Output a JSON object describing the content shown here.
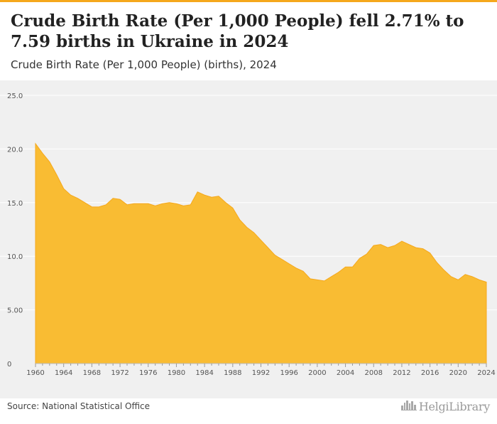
{
  "header": {
    "title": "Crude Birth Rate (Per 1,000 People) fell 2.71% to 7.59 births in Ukraine in 2024",
    "subtitle": "Crude Birth Rate (Per 1,000 People) (births), 2024"
  },
  "footer": {
    "source": "Source: National Statistical Office",
    "logo_text": "HelgiLibrary"
  },
  "colors": {
    "area_fill": "#f9bc33",
    "area_stroke": "#f5a81c",
    "plot_background": "#f0f0f0",
    "grid": "#ffffff",
    "accent_bar": "#f5a81c"
  },
  "icons": {
    "logo": "city-skyline-icon"
  },
  "chart_data": {
    "type": "area",
    "title": "",
    "xlabel": "",
    "ylabel": "",
    "xlim": [
      1960,
      2024
    ],
    "ylim": [
      0,
      25
    ],
    "grid": true,
    "legend": "none",
    "y_ticks": [
      0,
      5,
      10,
      15,
      20,
      25
    ],
    "y_tick_labels": [
      "0",
      "5.00",
      "10.0",
      "15.0",
      "20.0",
      "25.0"
    ],
    "x_ticks": [
      1960,
      1964,
      1968,
      1972,
      1976,
      1980,
      1984,
      1988,
      1992,
      1996,
      2000,
      2004,
      2008,
      2012,
      2016,
      2020,
      2024
    ],
    "x_tick_labels": [
      "1960",
      "1964",
      "1968",
      "1972",
      "1976",
      "1980",
      "1984",
      "1988",
      "1992",
      "1996",
      "2000",
      "2004",
      "2008",
      "2012",
      "2016",
      "2020",
      "2024"
    ],
    "series": [
      {
        "x": [
          1960,
          1961,
          1962,
          1963,
          1964,
          1965,
          1966,
          1967,
          1968,
          1969,
          1970,
          1971,
          1972,
          1973,
          1974,
          1975,
          1976,
          1977,
          1978,
          1979,
          1980,
          1981,
          1982,
          1983,
          1984,
          1985,
          1986,
          1987,
          1988,
          1989,
          1990,
          1991,
          1992,
          1993,
          1994,
          1995,
          1996,
          1997,
          1998,
          1999,
          2000,
          2001,
          2002,
          2003,
          2004,
          2005,
          2006,
          2007,
          2008,
          2009,
          2010,
          2011,
          2012,
          2013,
          2014,
          2015,
          2016,
          2017,
          2018,
          2019,
          2020,
          2021,
          2022,
          2023,
          2024
        ],
        "values": [
          20.5,
          19.6,
          18.8,
          17.6,
          16.3,
          15.7,
          15.4,
          15.0,
          14.6,
          14.6,
          14.8,
          15.4,
          15.3,
          14.8,
          14.9,
          14.9,
          14.9,
          14.7,
          14.9,
          15.0,
          14.9,
          14.7,
          14.8,
          16.0,
          15.7,
          15.5,
          15.6,
          15.0,
          14.5,
          13.4,
          12.7,
          12.2,
          11.5,
          10.8,
          10.1,
          9.7,
          9.3,
          8.9,
          8.6,
          7.9,
          7.8,
          7.7,
          8.1,
          8.5,
          9.0,
          9.0,
          9.8,
          10.2,
          11.0,
          11.1,
          10.8,
          11.0,
          11.4,
          11.1,
          10.8,
          10.7,
          10.3,
          9.4,
          8.7,
          8.1,
          7.8,
          8.3,
          8.1,
          7.8,
          7.59
        ]
      }
    ]
  }
}
